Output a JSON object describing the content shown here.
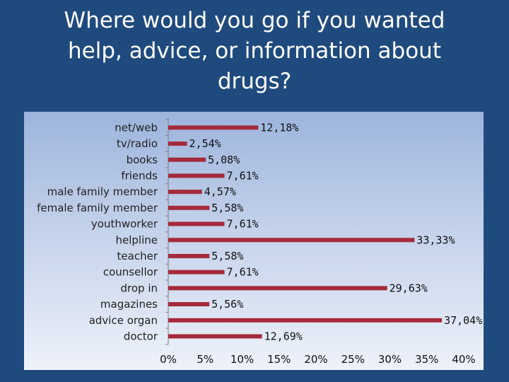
{
  "slide": {
    "title": "Where would you go if you wanted\nhelp, advice, or information about\ndrugs?"
  },
  "chart_data": {
    "type": "bar",
    "orientation": "horizontal",
    "categories": [
      "net/web",
      "tv/radio",
      "books",
      "friends",
      "male family member",
      "female family member",
      "youthworker",
      "helpline",
      "teacher",
      "counsellor",
      "drop in",
      "magazines",
      "advice organ",
      "doctor"
    ],
    "values": [
      12.18,
      2.54,
      5.08,
      7.61,
      4.57,
      5.58,
      7.61,
      33.33,
      5.58,
      7.61,
      29.63,
      5.56,
      37.04,
      12.69
    ],
    "value_labels": [
      "12,18%",
      "2,54%",
      "5,08%",
      "7,61%",
      "4,57%",
      "5,58%",
      "7,61%",
      "33,33%",
      "5,58%",
      "7,61%",
      "29,63%",
      "5,56%",
      "37,04%",
      "12,69%"
    ],
    "xticks": [
      "0%",
      "5%",
      "10%",
      "15%",
      "20%",
      "25%",
      "30%",
      "35%",
      "40%"
    ],
    "xlim": [
      0,
      40
    ],
    "bar_color": "#a52a3a",
    "grid": false,
    "legend": "none"
  }
}
